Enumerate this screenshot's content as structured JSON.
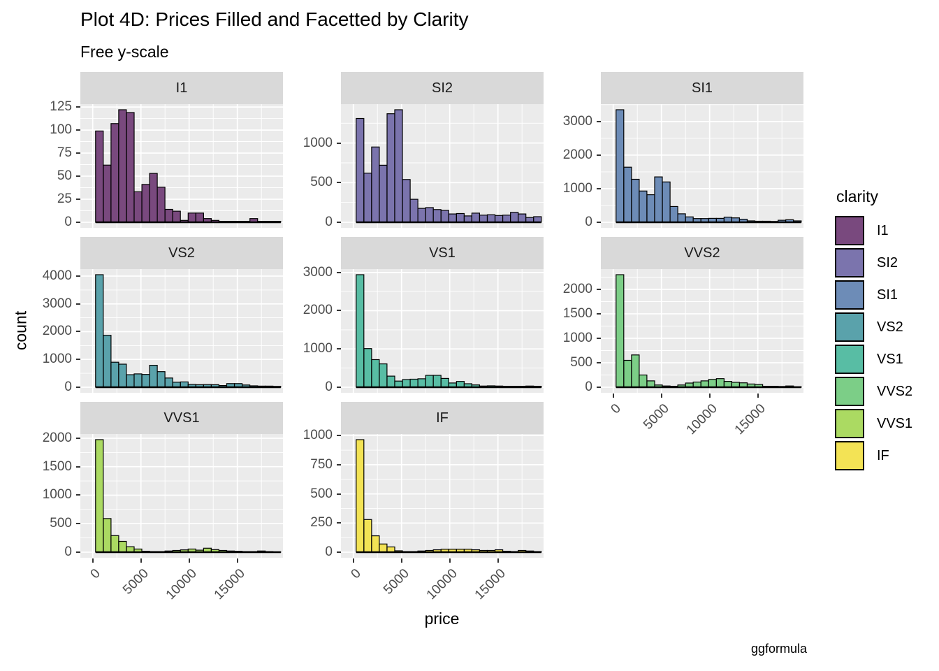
{
  "title": "Plot 4D: Prices Filled and Facetted by Clarity",
  "subtitle": "Free y-scale",
  "caption": "ggformula",
  "legend": {
    "title": "clarity"
  },
  "chart_data": {
    "type": "bar",
    "subtype": "faceted-histogram",
    "title": "Plot 4D: Prices Filled and Facetted by Clarity",
    "subtitle": "Free y-scale",
    "xlabel": "price",
    "ylabel": "count",
    "facet_by": "clarity",
    "free_y": true,
    "grid_cols": 3,
    "x_ticks": [
      0,
      5000,
      10000,
      15000
    ],
    "x_tick_labels": [
      "0",
      "5000",
      "10000",
      "15000"
    ],
    "x_domain": [
      -1280,
      19730
    ],
    "bin_start": 300,
    "bin_width": 800,
    "colors": {
      "panel_bg": "#EBEBEB",
      "strip_bg": "#D9D9D9",
      "grid": "#FFFFFF",
      "bar_outline": "#000000",
      "axis_text": "#4D4D4D",
      "strip_text": "#1A1A1A"
    },
    "facets": [
      {
        "label": "I1",
        "color": "#79497E",
        "y_ticks": [
          0,
          25,
          50,
          75,
          100,
          125
        ],
        "counts": [
          99,
          62,
          107,
          122,
          119,
          33,
          41,
          53,
          38,
          14,
          12,
          2,
          10,
          10,
          4,
          2,
          1,
          1,
          1,
          1,
          4,
          1,
          1,
          1
        ]
      },
      {
        "label": "SI2",
        "color": "#7B74AD",
        "y_ticks": [
          0,
          500,
          1000
        ],
        "counts": [
          1310,
          620,
          950,
          720,
          1370,
          1420,
          540,
          290,
          175,
          185,
          160,
          150,
          105,
          110,
          80,
          115,
          90,
          95,
          85,
          90,
          125,
          105,
          60,
          70
        ]
      },
      {
        "label": "SI1",
        "color": "#6D8CB7",
        "y_ticks": [
          0,
          1000,
          2000,
          3000
        ],
        "counts": [
          3350,
          1640,
          1280,
          930,
          820,
          1350,
          1200,
          470,
          250,
          160,
          110,
          110,
          115,
          115,
          150,
          130,
          90,
          40,
          30,
          30,
          25,
          60,
          75,
          40
        ]
      },
      {
        "label": "VS2",
        "color": "#5AA2AB",
        "y_ticks": [
          0,
          1000,
          2000,
          3000,
          4000
        ],
        "counts": [
          4050,
          1870,
          900,
          830,
          450,
          480,
          460,
          790,
          560,
          330,
          180,
          190,
          100,
          90,
          95,
          90,
          60,
          130,
          130,
          80,
          50,
          40,
          40,
          30
        ]
      },
      {
        "label": "VS1",
        "color": "#58BDA4",
        "y_ticks": [
          0,
          1000,
          2000,
          3000
        ],
        "counts": [
          2940,
          1010,
          720,
          610,
          290,
          160,
          200,
          210,
          220,
          310,
          310,
          230,
          110,
          150,
          90,
          60,
          30,
          35,
          30,
          25,
          25,
          25,
          30,
          25
        ]
      },
      {
        "label": "VVS2",
        "color": "#7CCE87",
        "y_ticks": [
          0,
          500,
          1000,
          1500,
          2000
        ],
        "counts": [
          2300,
          550,
          660,
          250,
          130,
          45,
          25,
          20,
          45,
          85,
          105,
          130,
          160,
          175,
          120,
          100,
          90,
          65,
          55,
          20,
          20,
          15,
          25,
          10
        ]
      },
      {
        "label": "VVS1",
        "color": "#ABDA62",
        "y_ticks": [
          0,
          500,
          1000,
          1500,
          2000
        ],
        "counts": [
          1975,
          590,
          290,
          190,
          95,
          55,
          15,
          10,
          10,
          20,
          30,
          40,
          55,
          35,
          70,
          45,
          30,
          20,
          15,
          10,
          10,
          20,
          10,
          5
        ]
      },
      {
        "label": "IF",
        "color": "#F3E355",
        "y_ticks": [
          0,
          250,
          500,
          750,
          1000
        ],
        "counts": [
          965,
          280,
          140,
          70,
          45,
          12,
          5,
          5,
          10,
          15,
          20,
          25,
          25,
          25,
          25,
          20,
          15,
          15,
          20,
          8,
          5,
          15,
          10,
          5
        ]
      }
    ]
  }
}
